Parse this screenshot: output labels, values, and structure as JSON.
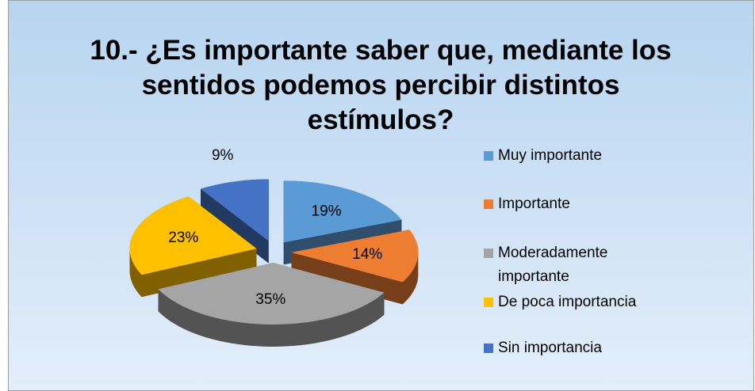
{
  "chart_data": {
    "type": "pie3d",
    "title": "10.- ¿Es importante saber que, mediante los sentidos podemos percibir distintos estímulos?",
    "categories": [
      "Muy importante",
      "Importante",
      "Moderadamente importante",
      "De poca importancia",
      "Sin importancia"
    ],
    "values": [
      19,
      14,
      35,
      23,
      9
    ],
    "value_labels": [
      "19%",
      "14%",
      "35%",
      "23%",
      "9%"
    ],
    "colors": [
      "#5b9bd5",
      "#ed7d31",
      "#a5a5a5",
      "#ffc000",
      "#4472c4"
    ],
    "legend": "right"
  }
}
